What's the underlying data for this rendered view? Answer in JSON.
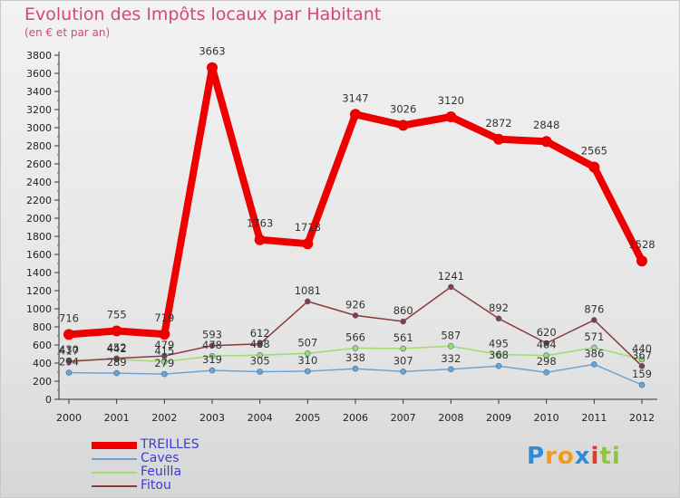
{
  "title": "Evolution des Impôts locaux par Habitant",
  "subtitle": "(en € et par an)",
  "brand": {
    "letters": [
      "P",
      "r",
      "o",
      "x",
      "i",
      "t",
      "i"
    ],
    "colors": [
      "#2e8bd8",
      "#f39a1e",
      "#f39a1e",
      "#2e8bd8",
      "#e23c2a",
      "#8dc63f",
      "#8dc63f"
    ]
  },
  "chart_data": {
    "type": "line",
    "title": "Evolution des Impôts locaux par Habitant",
    "subtitle": "(en € et par an)",
    "xlabel": "",
    "ylabel": "",
    "ylim": [
      0,
      3800
    ],
    "ytick_step": 200,
    "grid": false,
    "legend_position": "bottom-left",
    "x": [
      "2000",
      "2001",
      "2002",
      "2003",
      "2004",
      "2005",
      "2006",
      "2007",
      "2008",
      "2009",
      "2010",
      "2011",
      "2012"
    ],
    "series": [
      {
        "name": "TREILLES",
        "color": "#ee0000",
        "stroke": 8,
        "marker": 6,
        "values": [
          716,
          755,
          719,
          3663,
          1763,
          1718,
          3147,
          3026,
          3120,
          2872,
          2848,
          2565,
          1528
        ],
        "labels": [
          "716",
          "755",
          "719",
          "3663",
          "1763",
          "1718",
          "3147",
          "3026",
          "3120",
          "2872",
          "2848",
          "2565",
          "1528"
        ]
      },
      {
        "name": "Caves",
        "color": "#6ea4d2",
        "stroke": 1.5,
        "marker": 3,
        "values": [
          294,
          289,
          279,
          319,
          305,
          310,
          338,
          307,
          332,
          368,
          298,
          386,
          159
        ],
        "labels": [
          "294",
          "289",
          "279",
          "319",
          "305",
          "310",
          "338",
          "307",
          "332",
          "368",
          "298",
          "386",
          "159"
        ]
      },
      {
        "name": "Feuilla",
        "color": "#9fdc6e",
        "stroke": 1.5,
        "marker": 3,
        "values": [
          430,
          442,
          415,
          478,
          488,
          507,
          566,
          561,
          587,
          495,
          484,
          571,
          440
        ],
        "labels": [
          "430",
          "442",
          "415",
          "478",
          "488",
          "507",
          "566",
          "561",
          "587",
          "495",
          "484",
          "571",
          "440"
        ]
      },
      {
        "name": "Fitou",
        "color": "#8c3a3a",
        "stroke": 1.5,
        "marker": 3,
        "values": [
          417,
          452,
          479,
          593,
          612,
          1081,
          926,
          860,
          1241,
          892,
          620,
          876,
          367
        ],
        "labels": [
          "417",
          "452",
          "479",
          "593",
          "612",
          "1081",
          "926",
          "860",
          "1241",
          "892",
          "620",
          "876",
          "367"
        ]
      }
    ]
  }
}
